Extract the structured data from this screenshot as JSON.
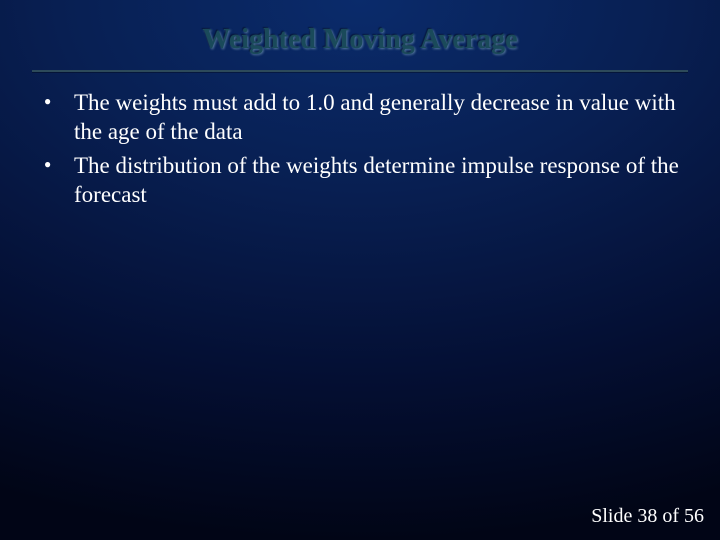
{
  "slide": {
    "title": "Weighted Moving Average",
    "title_fontsize": 28,
    "title_color": "#1a4a5a",
    "bullets": [
      "The weights must add to 1.0 and generally decrease in value with the age of the data",
      "The distribution of the weights determine impulse response of the forecast"
    ],
    "body_fontsize": 23,
    "body_color": "#ffffff",
    "footer": {
      "text": "Slide 38 of 56",
      "fontsize": 20,
      "color": "#ffffff"
    },
    "background": {
      "type": "radial-gradient",
      "center_color": "#0a2b6b",
      "mid_color": "#081f52",
      "outer_color": "#010516"
    },
    "divider_color": "#2d4a5a"
  }
}
